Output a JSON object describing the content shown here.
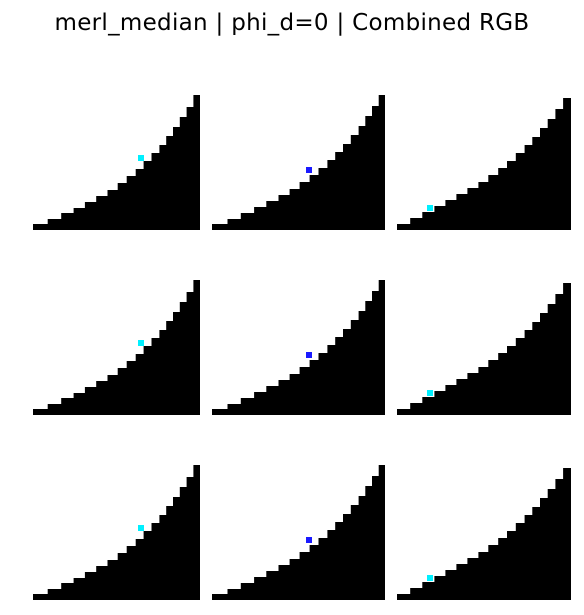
{
  "figure": {
    "title": "merl_median | phi_d=0 | Combined RGB"
  },
  "colors": {
    "background": "#ffffff",
    "mask": "#000000",
    "marker_cyan": "#00f0ff",
    "marker_blue": "#1a1aff"
  },
  "grid": {
    "rows": 3,
    "cols": 3
  },
  "panels": [
    {
      "marker_color": "marker_cyan"
    },
    {
      "marker_color": "marker_blue"
    },
    {
      "marker_color": "marker_cyan"
    },
    {
      "marker_color": "marker_cyan"
    },
    {
      "marker_color": "marker_blue"
    },
    {
      "marker_color": "marker_cyan"
    },
    {
      "marker_color": "marker_cyan"
    },
    {
      "marker_color": "marker_blue"
    },
    {
      "marker_color": "marker_cyan"
    }
  ]
}
